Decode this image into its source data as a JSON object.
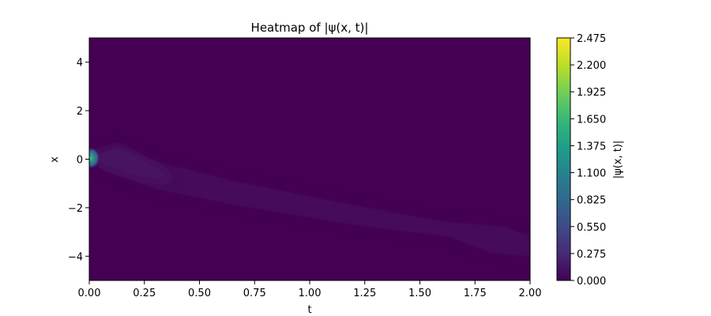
{
  "chart_data": {
    "type": "heatmap",
    "title": "Heatmap of |ψ(x, t)|",
    "xlabel": "t",
    "ylabel": "x",
    "xlim": [
      0.0,
      2.0
    ],
    "ylim": [
      -5,
      5
    ],
    "x_ticks": [
      "0.00",
      "0.25",
      "0.50",
      "0.75",
      "1.00",
      "1.25",
      "1.50",
      "1.75",
      "2.00"
    ],
    "y_ticks": [
      "4",
      "2",
      "0",
      "−2",
      "−4"
    ],
    "colormap": "viridis",
    "colorbar": {
      "label": "|ψ(x, t)|",
      "range": [
        0.0,
        2.475
      ],
      "ticks": [
        "2.475",
        "2.200",
        "1.925",
        "1.650",
        "1.375",
        "1.100",
        "0.825",
        "0.550",
        "0.275",
        "0.000"
      ]
    },
    "features": [
      {
        "description_t": 0.0,
        "x": 0.0,
        "value": 1.2
      },
      {
        "description_t": 0.1,
        "x": -0.5,
        "value": 0.15
      },
      {
        "description_t": 1.0,
        "x": -2.0,
        "value": 0.08
      },
      {
        "description_t": 1.8,
        "x": -3.3,
        "value": 0.06
      }
    ],
    "grid": false
  }
}
